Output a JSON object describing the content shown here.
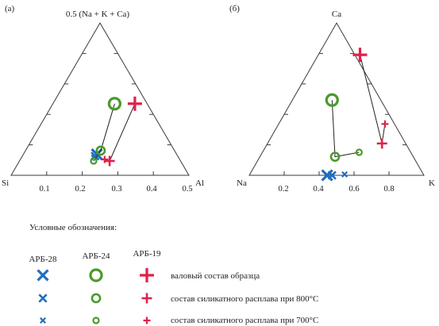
{
  "colors": {
    "ARB-28": "#1f6fc0",
    "ARB-24": "#4a9a2a",
    "ARB-19": "#e0204a"
  },
  "chart_data": [
    {
      "panel": "(а)",
      "type": "scatter",
      "top_label": "0.5 (Na + K + Ca)",
      "left_label": "Si",
      "right_label": "Al",
      "ticks": [
        {
          "value": 0.1,
          "label": "0.1"
        },
        {
          "value": 0.2,
          "label": "0.2"
        },
        {
          "value": 0.3,
          "label": "0.3"
        },
        {
          "value": 0.4,
          "label": "0.4"
        },
        {
          "value": 0.5,
          "label": "0.5"
        }
      ],
      "series": [
        {
          "name": "АРБ-28",
          "marker": "x",
          "points": [
            {
              "state": "bulk",
              "x": 0.241,
              "y": 0.069
            },
            {
              "state": "800C",
              "x": 0.236,
              "y": 0.063
            },
            {
              "state": "700C",
              "x": 0.233,
              "y": 0.058
            }
          ]
        },
        {
          "name": "АРБ-24",
          "marker": "o",
          "points": [
            {
              "state": "bulk",
              "x": 0.291,
              "y": 0.235
            },
            {
              "state": "800C",
              "x": 0.252,
              "y": 0.081
            },
            {
              "state": "700C",
              "x": 0.232,
              "y": 0.047
            }
          ]
        },
        {
          "name": "АРБ-19",
          "marker": "+",
          "points": [
            {
              "state": "bulk",
              "x": 0.348,
              "y": 0.235
            },
            {
              "state": "800C",
              "x": 0.277,
              "y": 0.047
            },
            {
              "state": "700C",
              "x": 0.263,
              "y": 0.052
            }
          ]
        }
      ]
    },
    {
      "panel": "(б)",
      "type": "scatter",
      "top_label": "Ca",
      "left_label": "Na",
      "right_label": "K",
      "ticks": [
        {
          "value": 0.2,
          "label": "0.2"
        },
        {
          "value": 0.4,
          "label": "0.4"
        },
        {
          "value": 0.6,
          "label": "0.6"
        },
        {
          "value": 0.8,
          "label": "0.8"
        }
      ],
      "series": [
        {
          "name": "АРБ-28",
          "marker": "x",
          "points": [
            {
              "state": "bulk",
              "x": 0.446,
              "y": 0.0
            },
            {
              "state": "800C",
              "x": 0.474,
              "y": 0.0
            },
            {
              "state": "700C",
              "x": 0.546,
              "y": 0.006
            }
          ]
        },
        {
          "name": "АРБ-24",
          "marker": "o",
          "points": [
            {
              "state": "bulk",
              "x": 0.474,
              "y": 0.494
            },
            {
              "state": "800C",
              "x": 0.491,
              "y": 0.122
            },
            {
              "state": "700C",
              "x": 0.629,
              "y": 0.151
            }
          ]
        },
        {
          "name": "АРБ-19",
          "marker": "+",
          "points": [
            {
              "state": "bulk",
              "x": 0.634,
              "y": 0.791
            },
            {
              "state": "800C",
              "x": 0.76,
              "y": 0.209
            },
            {
              "state": "700C",
              "x": 0.777,
              "y": 0.337
            }
          ]
        }
      ]
    }
  ],
  "legend": {
    "title": "Условные обозначения:",
    "columns": [
      "АРБ-28",
      "АРБ-24",
      "АРБ-19"
    ],
    "rows": [
      {
        "size": "large",
        "label": "валовый  состав образца"
      },
      {
        "size": "medium",
        "label": "состав силикатного расплава при 800°С"
      },
      {
        "size": "small",
        "label": "состав силикатного расплава при 700°С"
      }
    ]
  }
}
